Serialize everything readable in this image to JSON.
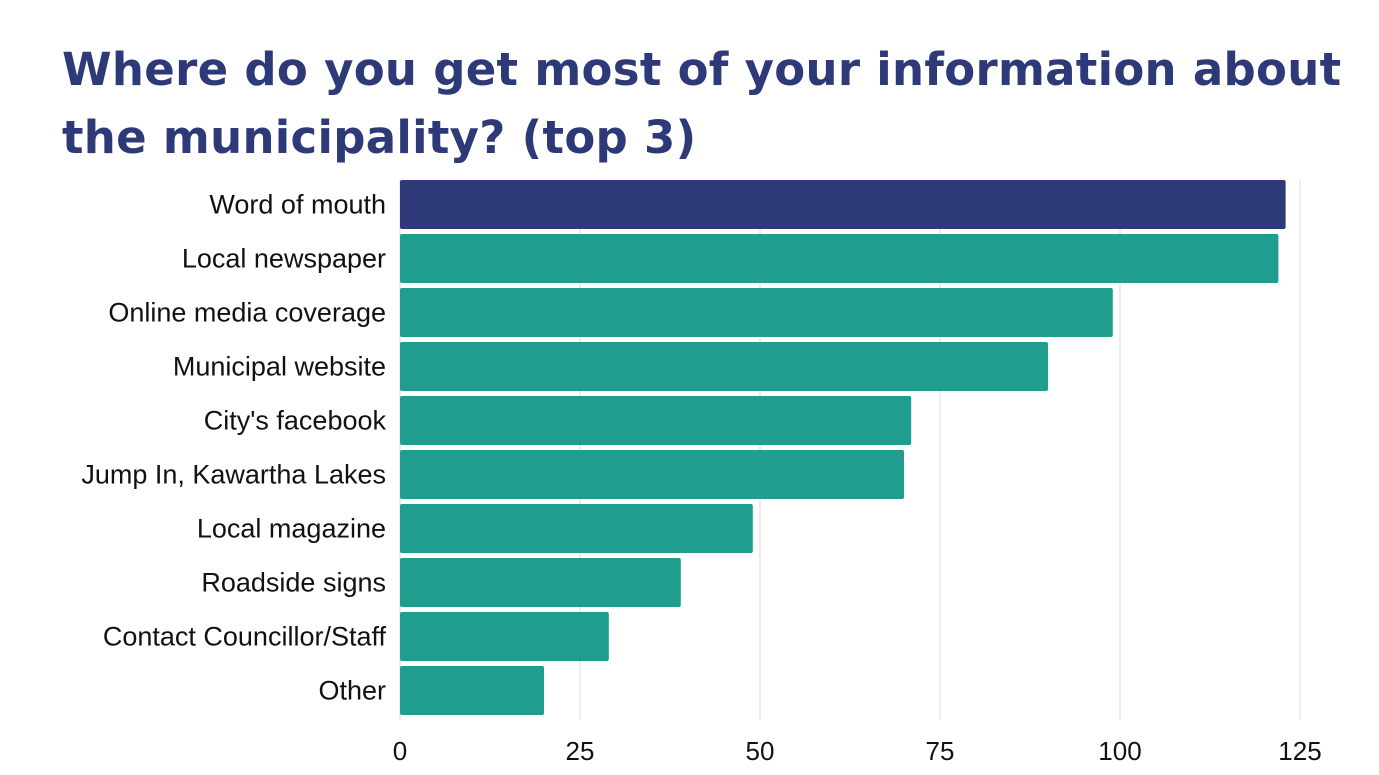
{
  "chart_data": {
    "type": "bar",
    "orientation": "horizontal",
    "title": "Where do you get most of your information about the municipality? (top 3)",
    "categories": [
      "Word of mouth",
      "Local newspaper",
      "Online media coverage",
      "Municipal website",
      "City's facebook",
      "Jump In, Kawartha Lakes",
      "Local magazine",
      "Roadside signs",
      "Contact Councillor/Staff",
      "Other"
    ],
    "values": [
      123,
      122,
      99,
      90,
      71,
      70,
      49,
      39,
      29,
      20
    ],
    "highlight_index": 0,
    "xlim": [
      0,
      125
    ],
    "xticks": [
      "0",
      "25",
      "50",
      "75",
      "100",
      "125"
    ],
    "grid": "vertical",
    "colors": {
      "highlight": "#2e3a78",
      "bar": "#1f9e8f",
      "grid": "#d9d9d9",
      "title": "#2e3a78"
    }
  }
}
